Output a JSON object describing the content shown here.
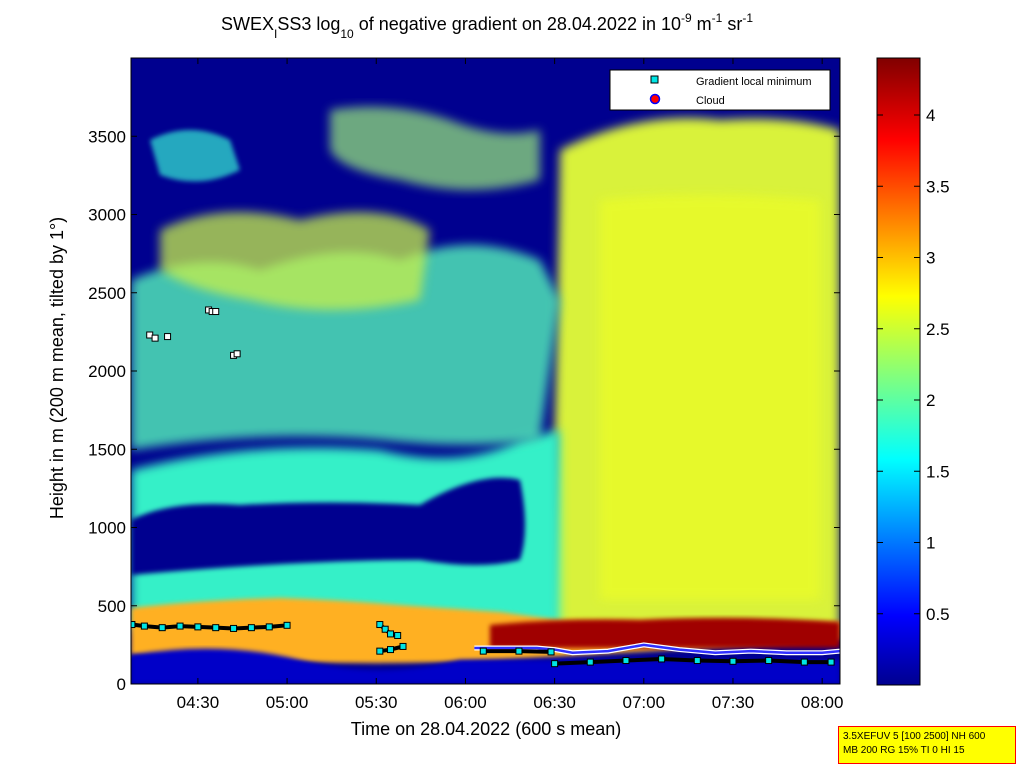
{
  "chart_data": {
    "type": "heatmap",
    "title": {
      "prefix": "SWEX",
      "prefix_sub": "I",
      "main": "SS3 log",
      "main_sub": "10",
      "mid": " of negative gradient on 28.04.2022 in 10",
      "unit_sup1": "-9",
      "unit_mid": " m",
      "unit_sup2": "-1",
      "unit_mid2": " sr",
      "unit_sup3": "-1"
    },
    "xlabel": "Time on 28.04.2022 (600 s mean)",
    "ylabel": "Height in m (200 m mean, tilted by 1°)",
    "x_range_hours": [
      4.125,
      8.1
    ],
    "ylim": [
      0,
      4000
    ],
    "x_ticks": [
      {
        "label": "04:30",
        "hour": 4.5
      },
      {
        "label": "05:00",
        "hour": 5.0
      },
      {
        "label": "05:30",
        "hour": 5.5
      },
      {
        "label": "06:00",
        "hour": 6.0
      },
      {
        "label": "06:30",
        "hour": 6.5
      },
      {
        "label": "07:00",
        "hour": 7.0
      },
      {
        "label": "07:30",
        "hour": 7.5
      },
      {
        "label": "08:00",
        "hour": 8.0
      }
    ],
    "y_ticks": [
      {
        "label": "0",
        "value": 0
      },
      {
        "label": "500",
        "value": 500
      },
      {
        "label": "1000",
        "value": 1000
      },
      {
        "label": "1500",
        "value": 1500
      },
      {
        "label": "2000",
        "value": 2000
      },
      {
        "label": "2500",
        "value": 2500
      },
      {
        "label": "3000",
        "value": 3000
      },
      {
        "label": "3500",
        "value": 3500
      }
    ],
    "colorbar": {
      "colormap": "jet",
      "range": [
        0,
        4.4
      ],
      "ticks": [
        {
          "label": "0.5",
          "value": 0.5
        },
        {
          "label": "1",
          "value": 1
        },
        {
          "label": "1.5",
          "value": 1.5
        },
        {
          "label": "2",
          "value": 2
        },
        {
          "label": "2.5",
          "value": 2.5
        },
        {
          "label": "3",
          "value": 3
        },
        {
          "label": "3.5",
          "value": 3.5
        },
        {
          "label": "4",
          "value": 4
        }
      ]
    },
    "legend": {
      "placement": "top-right",
      "entries": [
        {
          "label": "Gradient local minimum",
          "color": "#00e5e5",
          "marker": "square"
        },
        {
          "label": "Cloud",
          "color": "#ff0000",
          "marker": "circle"
        }
      ]
    },
    "gradient_minimum_series": [
      {
        "x": [
          4.13,
          4.2,
          4.3,
          4.4,
          4.5,
          4.6,
          4.7,
          4.8,
          4.9,
          5.0
        ],
        "y": [
          380,
          370,
          360,
          370,
          365,
          360,
          355,
          360,
          365,
          375
        ]
      },
      {
        "x": [
          5.52,
          5.55,
          5.58,
          5.62
        ],
        "y": [
          380,
          350,
          320,
          310
        ]
      },
      {
        "x": [
          5.52,
          5.58,
          5.65
        ],
        "y": [
          210,
          220,
          240
        ]
      },
      {
        "x": [
          6.1,
          6.3,
          6.48
        ],
        "y": [
          210,
          210,
          205
        ]
      },
      {
        "x": [
          6.5,
          6.7,
          6.9,
          7.1,
          7.3,
          7.5,
          7.7,
          7.9,
          8.05
        ],
        "y": [
          130,
          140,
          150,
          160,
          150,
          145,
          150,
          140,
          140
        ]
      }
    ],
    "gradient_minimum_points": [
      {
        "x": 4.23,
        "y": 2230
      },
      {
        "x": 4.26,
        "y": 2210
      },
      {
        "x": 4.33,
        "y": 2220
      },
      {
        "x": 4.56,
        "y": 2390
      },
      {
        "x": 4.58,
        "y": 2380
      },
      {
        "x": 4.6,
        "y": 2380
      },
      {
        "x": 4.7,
        "y": 2100
      },
      {
        "x": 4.72,
        "y": 2110
      }
    ],
    "cloud_series": [
      {
        "x": [
          6.05,
          6.2,
          6.4,
          6.5,
          6.6,
          6.8,
          7.0,
          7.2,
          7.4,
          7.6,
          7.8,
          8.0,
          8.1
        ],
        "y": [
          230,
          230,
          230,
          220,
          200,
          210,
          250,
          220,
          200,
          210,
          200,
          200,
          210
        ]
      }
    ],
    "annotation_lines": [
      "3.5XEFUV 5 [100 2500] NH 600",
      "MB 200 RG 15% TI 0 HI 15"
    ]
  }
}
